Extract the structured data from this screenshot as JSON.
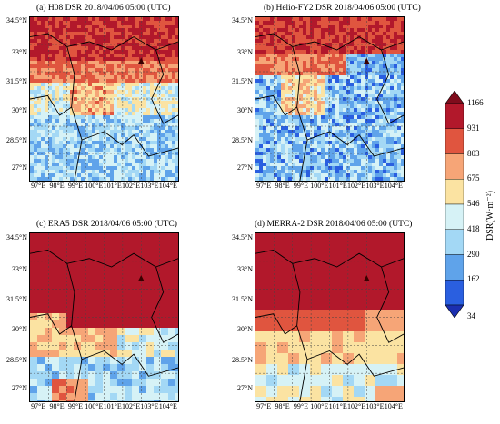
{
  "panels": [
    {
      "id": "a",
      "title": "(a) H08 DSR 2018/04/06 05:00 (UTC)"
    },
    {
      "id": "b",
      "title": "(b) Helio-FY2 DSR 2018/04/06 05:00 (UTC)"
    },
    {
      "id": "c",
      "title": "(c) ERA5 DSR 2018/04/06 05:00 (UTC)"
    },
    {
      "id": "d",
      "title": "(d) MERRA-2 DSR 2018/04/06 05:00 (UTC)"
    }
  ],
  "lat_labels": [
    "34.5°N",
    "33°N",
    "31.5°N",
    "30°N",
    "28.5°N",
    "27°N"
  ],
  "lon_labels": [
    "97°E",
    "98°E",
    "99°E",
    "100°E",
    "101°E",
    "102°E",
    "103°E",
    "104°E"
  ],
  "colorbar": {
    "title": "DSR(W·m⁻²)",
    "ticks": [
      "1166",
      "931",
      "803",
      "675",
      "546",
      "418",
      "290",
      "162",
      "34"
    ],
    "colors": [
      "#b2182b",
      "#e0553f",
      "#f6a577",
      "#fbe3a2",
      "#d6f2f6",
      "#a3d8f5",
      "#5fa3ea",
      "#2a5fe0"
    ],
    "over_color": "#7f0c1c",
    "under_color": "#1b2fb0"
  },
  "marker": {
    "symbol": "triangle",
    "color": "#3a0000"
  }
}
